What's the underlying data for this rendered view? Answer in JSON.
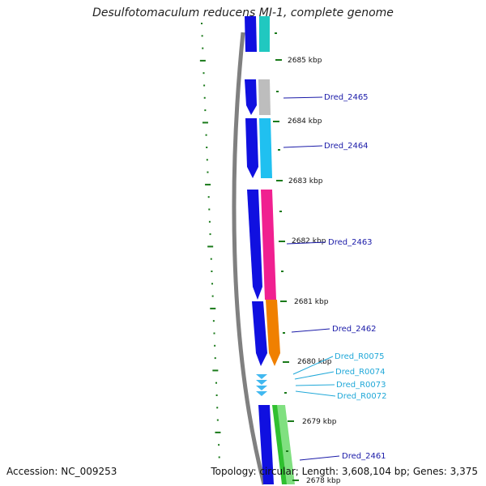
{
  "title": "Desulfotomaculum reducens MI-1, complete genome",
  "footer": {
    "accession": "Accession: NC_009253",
    "summary": "Topology: circular; Length: 3,608,104 bp; Genes: 3,375"
  },
  "colors": {
    "backbone": "#808080",
    "tick": "#1a7a1a",
    "cds_strand": "#1010e0",
    "label_dark": "#1a1aa8",
    "label_light": "#20a8d8",
    "rna_arrow": "#40b8f0"
  },
  "ticks": [
    {
      "label": "2685 kbp"
    },
    {
      "label": "2684 kbp"
    },
    {
      "label": "2683 kbp"
    },
    {
      "label": "2682 kbp"
    },
    {
      "label": "2681 kbp"
    },
    {
      "label": "2680 kbp"
    },
    {
      "label": "2679 kbp"
    },
    {
      "label": "2678 kbp"
    }
  ],
  "genes": [
    {
      "name": "Dred_2465",
      "color": "#bdbdbd"
    },
    {
      "name": "Dred_2464",
      "color": "#20c0f0"
    },
    {
      "name": "Dred_2463",
      "color": "#f02090"
    },
    {
      "name": "Dred_2462",
      "color": "#f08000"
    },
    {
      "name": "Dred_2461",
      "color": "#30c030"
    }
  ],
  "rnas": [
    {
      "name": "Dred_R0075"
    },
    {
      "name": "Dred_R0074"
    },
    {
      "name": "Dred_R0073"
    },
    {
      "name": "Dred_R0072"
    }
  ]
}
